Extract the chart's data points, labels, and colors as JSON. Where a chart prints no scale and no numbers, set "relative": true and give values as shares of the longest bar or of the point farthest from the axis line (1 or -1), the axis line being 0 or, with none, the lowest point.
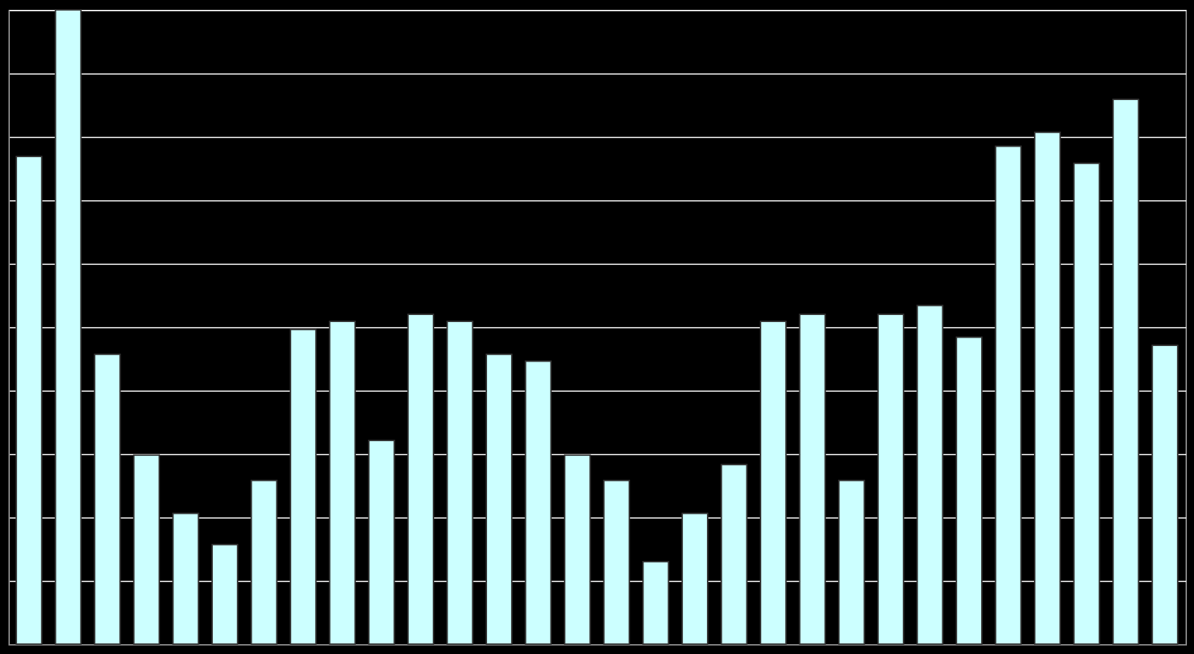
{
  "chart_data": {
    "type": "bar",
    "relative": true,
    "grid": true,
    "tick_labels": false,
    "color": "#ccffff",
    "categories": [
      null,
      null,
      null,
      null,
      null,
      null,
      null,
      null,
      null,
      null,
      null,
      null,
      null,
      null,
      null,
      null,
      null,
      null,
      null,
      null,
      null,
      null,
      null,
      null,
      null,
      null,
      null,
      null,
      null,
      null
    ],
    "values": [
      0.769,
      1,
      0.457,
      0.298,
      0.206,
      0.157,
      0.258,
      0.496,
      0.509,
      0.321,
      0.52,
      0.509,
      0.457,
      0.446,
      0.298,
      0.258,
      0.13,
      0.206,
      0.283,
      0.509,
      0.52,
      0.258,
      0.52,
      0.534,
      0.484,
      0.785,
      0.807,
      0.758,
      0.859,
      0.471
    ]
  }
}
